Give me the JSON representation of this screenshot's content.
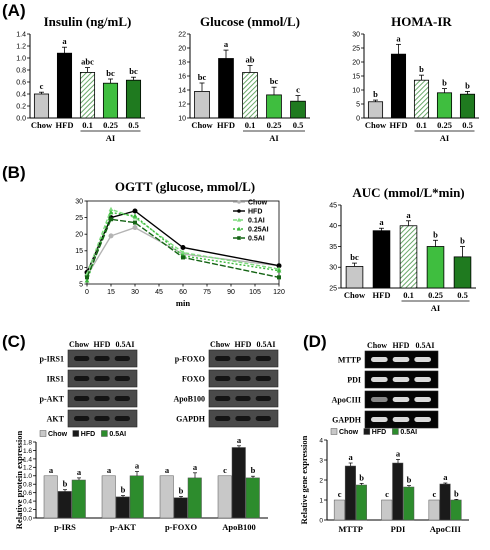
{
  "panels": {
    "a": "(A)",
    "b": "(B)",
    "c": "(C)",
    "d": "(D)"
  },
  "colors": {
    "chow": "#c8c8c8",
    "hfd": "#000000",
    "ai01": "#a7d7a0",
    "ai025": "#3fbe3f",
    "ai05": "#1f7a1f",
    "c_hfd": "#1a1a1a",
    "c_ai": "#2d8c2d"
  },
  "chart_data": [
    {
      "id": "insulin",
      "type": "bar",
      "title": "Insulin (ng/mL)",
      "categories": [
        "Chow",
        "HFD",
        "0.1",
        "0.25",
        "0.5"
      ],
      "group_label": "AI",
      "values": [
        0.4,
        1.08,
        0.76,
        0.58,
        0.63
      ],
      "errors": [
        0.03,
        0.1,
        0.08,
        0.07,
        0.05
      ],
      "labels": [
        "c",
        "a",
        "abc",
        "bc",
        "bc"
      ],
      "ylim": [
        0,
        1.4
      ],
      "yticks": [
        "0.0",
        "0.2",
        "0.4",
        "0.6",
        "0.8",
        "1.0",
        "1.2",
        "1.4"
      ],
      "ystep": 0.2
    },
    {
      "id": "glucose",
      "type": "bar",
      "title": "Glucose (mmol/L)",
      "categories": [
        "Chow",
        "HFD",
        "0.1",
        "0.25",
        "0.5"
      ],
      "group_label": "AI",
      "values": [
        13.8,
        18.5,
        16.5,
        13.3,
        12.4
      ],
      "errors": [
        1.2,
        1.2,
        1.0,
        1.1,
        0.8
      ],
      "labels": [
        "bc",
        "a",
        "ab",
        "bc",
        "c"
      ],
      "ylim": [
        10,
        22
      ],
      "yticks": [
        "10",
        "12",
        "14",
        "16",
        "18",
        "20",
        "22"
      ],
      "ystep": 2
    },
    {
      "id": "homa",
      "type": "bar",
      "title": "HOMA-IR",
      "categories": [
        "Chow",
        "HFD",
        "0.1",
        "0.25",
        "0.5"
      ],
      "group_label": "AI",
      "values": [
        5.8,
        22.8,
        13.5,
        9.0,
        8.5
      ],
      "errors": [
        0.6,
        3.5,
        1.8,
        1.5,
        1.0
      ],
      "labels": [
        "b",
        "a",
        "b",
        "b",
        "b"
      ],
      "ylim": [
        0,
        30
      ],
      "yticks": [
        "0",
        "5",
        "10",
        "15",
        "20",
        "25",
        "30"
      ],
      "ystep": 5
    },
    {
      "id": "ogtt",
      "type": "line",
      "title": "OGTT (glucose, mmol/L)",
      "xlabel": "min",
      "x": [
        0,
        15,
        30,
        60,
        120
      ],
      "xticks": [
        "0",
        "15",
        "30",
        "45",
        "60",
        "75",
        "90",
        "105",
        "120"
      ],
      "xlim": [
        0,
        120
      ],
      "ylim": [
        5,
        30
      ],
      "yticks": [
        "5",
        "10",
        "15",
        "20",
        "25",
        "30"
      ],
      "series": [
        {
          "name": "Chow",
          "values": [
            7.5,
            19.5,
            22.0,
            14.0,
            10.5
          ],
          "color": "#b4b4b4",
          "dash": "",
          "marker": "circle"
        },
        {
          "name": "HFD",
          "values": [
            8.5,
            25.0,
            27.0,
            16.0,
            10.5
          ],
          "color": "#000000",
          "dash": "",
          "marker": "circle"
        },
        {
          "name": "0.1AI",
          "values": [
            8.0,
            27.5,
            25.0,
            14.5,
            9.5
          ],
          "color": "#7fdc7f",
          "dash": "4,2",
          "marker": "triangle"
        },
        {
          "name": "0.25AI",
          "values": [
            6.0,
            26.5,
            25.5,
            13.5,
            9.0
          ],
          "color": "#3cb83c",
          "dash": "2,2",
          "marker": "triangle"
        },
        {
          "name": "0.5AI",
          "values": [
            7.0,
            24.5,
            23.5,
            13.0,
            7.0
          ],
          "color": "#146414",
          "dash": "6,2",
          "marker": "square"
        }
      ]
    },
    {
      "id": "auc",
      "type": "bar",
      "title": "AUC (mmol/L*min)",
      "categories": [
        "Chow",
        "HFD",
        "0.1",
        "0.25",
        "0.5"
      ],
      "group_label": "AI",
      "values": [
        30.2,
        38.8,
        40.0,
        35.0,
        32.5
      ],
      "errors": [
        0.8,
        0.6,
        1.2,
        1.5,
        2.5
      ],
      "labels": [
        "bc",
        "a",
        "a",
        "b",
        "b"
      ],
      "ylim": [
        25,
        45
      ],
      "yticks": [
        "25",
        "30",
        "35",
        "40",
        "45"
      ],
      "ystep": 5
    },
    {
      "id": "protein",
      "type": "bar",
      "ylabel": "Relative protein expression",
      "categories": [
        "p-IRS",
        "p-AKT",
        "p-FOXO",
        "ApoB100"
      ],
      "series": [
        {
          "name": "Chow",
          "values": [
            1.0,
            1.0,
            1.0,
            1.0
          ],
          "errors": [
            0,
            0,
            0,
            0
          ],
          "labels": [
            "a",
            "a",
            "a",
            "c"
          ]
        },
        {
          "name": "HFD",
          "values": [
            0.63,
            0.5,
            0.48,
            1.67
          ],
          "errors": [
            0.04,
            0.03,
            0.03,
            0.04
          ],
          "labels": [
            "b",
            "b",
            "b",
            "a"
          ]
        },
        {
          "name": "0.5AI",
          "values": [
            0.9,
            1.0,
            0.95,
            0.95
          ],
          "errors": [
            0.05,
            0.1,
            0.12,
            0.04
          ],
          "labels": [
            "a",
            "a",
            "a",
            "b"
          ]
        }
      ],
      "ylim": [
        0,
        1.8
      ],
      "yticks": [
        "0.0",
        "0.2",
        "0.4",
        "0.6",
        "0.8",
        "1.0",
        "1.2",
        "1.4",
        "1.6",
        "1.8"
      ],
      "ystep": 0.2,
      "legend": "top"
    },
    {
      "id": "gene",
      "type": "bar",
      "ylabel": "Relative gene expression",
      "categories": [
        "MTTP",
        "PDI",
        "ApoCIII"
      ],
      "series": [
        {
          "name": "Chow",
          "values": [
            1.0,
            1.0,
            1.0
          ],
          "errors": [
            0,
            0,
            0
          ],
          "labels": [
            "c",
            "c",
            "c"
          ]
        },
        {
          "name": "HFD",
          "values": [
            2.7,
            2.85,
            1.8
          ],
          "errors": [
            0.15,
            0.18,
            0.05
          ],
          "labels": [
            "a",
            "a",
            "a"
          ]
        },
        {
          "name": "0.5AI",
          "values": [
            1.75,
            1.65,
            1.0
          ],
          "errors": [
            0.08,
            0.07,
            0.03
          ],
          "labels": [
            "b",
            "b",
            "b"
          ]
        }
      ],
      "ylim": [
        0,
        4
      ],
      "yticks": [
        "0",
        "1",
        "2",
        "3",
        "4"
      ],
      "ystep": 1,
      "legend": "top"
    }
  ],
  "blot_c": {
    "left": {
      "header": [
        "Chow",
        "HFD",
        "0.5AI"
      ],
      "rows": [
        "p-IRS1",
        "IRS1",
        "p-AKT",
        "AKT"
      ]
    },
    "right": {
      "header": [
        "Chow",
        "HFD",
        "0.5AI"
      ],
      "rows": [
        "p-FOXO",
        "FOXO",
        "ApoB100",
        "GAPDH"
      ]
    }
  },
  "gel_d": {
    "header": [
      "Chow",
      "HFD",
      "0.5AI"
    ],
    "rows": [
      "MTTP",
      "PDI",
      "ApoCIII",
      "GAPDH"
    ]
  }
}
